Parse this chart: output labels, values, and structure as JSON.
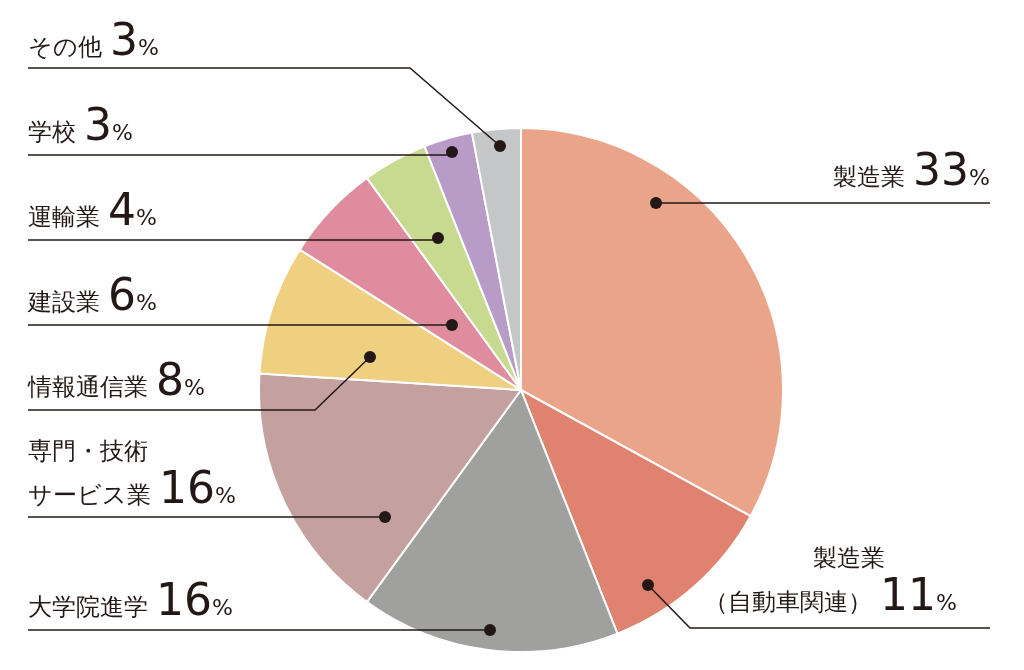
{
  "chart_data": {
    "type": "pie",
    "categories": [
      "製造業",
      "製造業（自動車関連）",
      "大学院進学",
      "専門・技術サービス業",
      "情報通信業",
      "建設業",
      "運輸業",
      "学校",
      "その他"
    ],
    "values": [
      33,
      11,
      16,
      16,
      8,
      6,
      4,
      3,
      3
    ],
    "colors": [
      "#e9a48a",
      "#e08270",
      "#a0a19f",
      "#c4a09f",
      "#efcf80",
      "#df8c9f",
      "#c8d990",
      "#b89cc7",
      "#c4c6c8"
    ],
    "value_labels": [
      "33%",
      "11%",
      "16%",
      "16%",
      "8%",
      "6%",
      "4%",
      "3%",
      "3%"
    ]
  }
}
